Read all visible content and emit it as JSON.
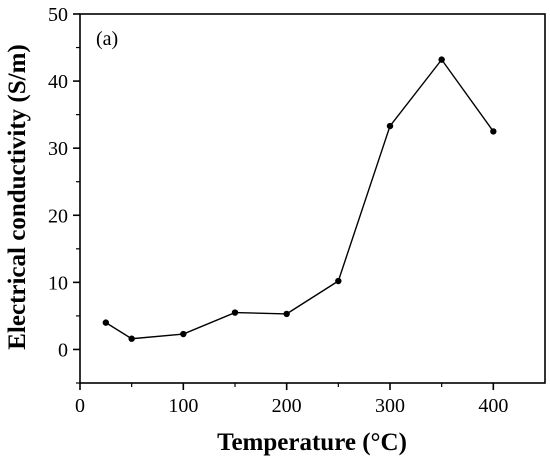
{
  "chart_data": {
    "type": "line",
    "panel_label": "(a)",
    "xlabel": "Temperature (°C)",
    "ylabel": "Electrical conductivity (S/m)",
    "xlim": [
      0,
      450
    ],
    "ylim": [
      -5,
      50
    ],
    "xticks": [
      0,
      100,
      200,
      300,
      400
    ],
    "yticks": [
      0,
      10,
      20,
      30,
      40,
      50
    ],
    "grid": false,
    "series": [
      {
        "color": "#000000",
        "marker": "circle",
        "x": [
          25,
          50,
          100,
          150,
          200,
          250,
          300,
          350,
          400
        ],
        "y": [
          4.0,
          1.6,
          2.3,
          5.5,
          5.3,
          10.2,
          33.3,
          43.2,
          32.5
        ]
      }
    ]
  }
}
